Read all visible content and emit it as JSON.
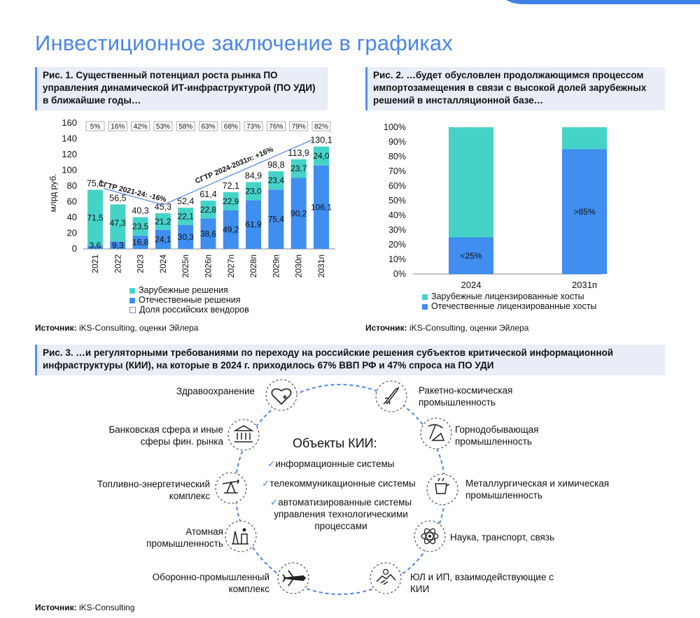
{
  "page": {
    "title": "Инвестиционное заключение в графиках"
  },
  "fig1": {
    "caption": "Рис. 1. Существенный потенциал роста рынка ПО управления динамической ИТ-инфраструктурой (ПО УДИ) в ближайшие годы…",
    "source_label": "Источник:",
    "source_text": " iKS-Consulting, оценки Эйлера",
    "legend": [
      "Зарубежные решения",
      "Отечественные решения",
      "Доля российских вендоров"
    ],
    "cagr1": "СГТР 2021-24: -16%",
    "cagr2": "СГТР 2024-2031п: +16%"
  },
  "fig2": {
    "caption": "Рис. 2. …будет обусловлен продолжающимся процессом импортозамещения в связи с высокой долей зарубежных решений в инсталляционной базе…",
    "source_label": "Источник:",
    "source_text": " iKS-Consulting, оценки Эйлера",
    "legend": [
      "Зарубежные лицензированные хосты",
      "Отечественные лицензированные хосты"
    ]
  },
  "fig3": {
    "caption": "Рис. 3. …и регуляторными требованиями по переходу на российские решения субъектов критической информационной инфраструктуры (КИИ), на которые в 2024 г. приходилось 67% ВВП РФ и 47% спроса на ПО УДИ",
    "center_title": "Объекты КИИ:",
    "center_items": [
      "информационные системы",
      "телекоммуникационные системы",
      "автоматизированные системы управления технологическими процессами"
    ],
    "nodes_left": [
      {
        "label": "Здравоохранение",
        "icon": "health-icon"
      },
      {
        "label": "Банковская сфера и иные сферы фин. рынка",
        "icon": "bank-icon"
      },
      {
        "label": "Топливно-энергетический комплекс",
        "icon": "oil-pump-icon"
      },
      {
        "label": "Атомная промышленность",
        "icon": "nuclear-plant-icon"
      },
      {
        "label": "Оборонно-промышленный комплекс",
        "icon": "airplane-icon"
      }
    ],
    "nodes_right": [
      {
        "label": "Ракетно-космическая промышленность",
        "icon": "rocket-icon"
      },
      {
        "label": "Горнодобывающая промышленность",
        "icon": "mining-icon"
      },
      {
        "label": "Металлургическая и химическая промышленность",
        "icon": "metallurgy-icon"
      },
      {
        "label": "Наука, транспорт, связь",
        "icon": "atom-icon"
      },
      {
        "label": "ЮЛ и ИП, взаимодействующие с КИИ",
        "icon": "handshake-icon"
      }
    ],
    "source_label": "Источник:",
    "source_text": " iKS-Consulting"
  },
  "colors": {
    "foreign": "#45d3c8",
    "domestic": "#3f8ef0",
    "title": "#4a86e8"
  },
  "chart_data": [
    {
      "type": "bar",
      "stacked": true,
      "ylabel": "млрд руб.",
      "ylim": [
        0,
        160
      ],
      "yticks": [
        0,
        20,
        40,
        60,
        80,
        100,
        120,
        140,
        160
      ],
      "categories": [
        "2021",
        "2022",
        "2023",
        "2024",
        "2025п",
        "2026п",
        "2027п",
        "2028п",
        "2029п",
        "2030п",
        "2031п"
      ],
      "series": [
        {
          "name": "Отечественные решения",
          "values": [
            3.6,
            9.3,
            16.8,
            24.1,
            30.3,
            38.6,
            49.2,
            61.9,
            75.4,
            90.2,
            106.1
          ],
          "labels": [
            "3,6",
            "9,3",
            "16,8",
            "24,1",
            "30,3",
            "38,6",
            "49,2",
            "61,9",
            "75,4",
            "90,2",
            "106,1"
          ]
        },
        {
          "name": "Зарубежные решения",
          "values": [
            71.5,
            47.3,
            23.5,
            21.2,
            22.1,
            22.8,
            22.9,
            23.0,
            23.4,
            23.7,
            24.0
          ],
          "labels": [
            "71,5",
            "47,3",
            "23,5",
            "21,2",
            "22,1",
            "22,8",
            "22,9",
            "23,0",
            "23,4",
            "23,7",
            "24,0"
          ]
        }
      ],
      "totals": [
        "75,1",
        "56,5",
        "40,3",
        "45,3",
        "52,4",
        "61,4",
        "72,1",
        "84,9",
        "98,8",
        "113,9",
        "130,1"
      ],
      "totals_values": [
        75.1,
        56.5,
        40.3,
        45.3,
        52.4,
        61.4,
        72.1,
        84.9,
        98.8,
        113.9,
        130.1
      ],
      "share_labels": [
        "5%",
        "16%",
        "42%",
        "53%",
        "58%",
        "63%",
        "68%",
        "73%",
        "76%",
        "79%",
        "82%"
      ]
    },
    {
      "type": "bar",
      "stacked": true,
      "percent": true,
      "ylim": [
        0,
        100
      ],
      "yticks": [
        "0%",
        "10%",
        "20%",
        "30%",
        "40%",
        "50%",
        "60%",
        "70%",
        "80%",
        "90%",
        "100%"
      ],
      "categories": [
        "2024",
        "2031п"
      ],
      "series": [
        {
          "name": "Отечественные лицензированные хосты",
          "values": [
            25,
            85
          ],
          "labels": [
            "<25%",
            ">85%"
          ]
        },
        {
          "name": "Зарубежные лицензированные хосты",
          "values": [
            75,
            15
          ]
        }
      ]
    }
  ]
}
